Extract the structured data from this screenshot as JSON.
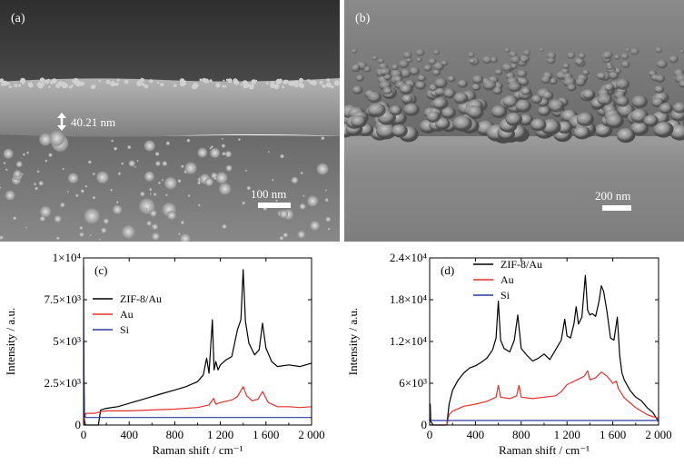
{
  "figure": {
    "panel_a": {
      "label": "(a)",
      "thickness_label": "40.21 nm",
      "scale_label": "100 nm"
    },
    "panel_b": {
      "label": "(b)",
      "scale_label": "200 nm"
    },
    "panel_c": {
      "label": "(c)"
    },
    "panel_d": {
      "label": "(d)"
    }
  },
  "chart_data": [
    {
      "type": "line",
      "panel": "(c)",
      "xlabel": "Raman shift / cm⁻¹",
      "ylabel": "Intensity / a.u.",
      "xlim": [
        0,
        2000
      ],
      "ylim": [
        0,
        10000
      ],
      "x_ticks": [
        0,
        400,
        800,
        1200,
        1600,
        2000
      ],
      "x_tick_labels": [
        "0",
        "400",
        "800",
        "1 200",
        "1 600",
        "2 000"
      ],
      "y_ticks": [
        0,
        2500,
        5000,
        7500,
        10000
      ],
      "y_tick_labels": [
        "0",
        "2.5×10³",
        "5×10³",
        "7.5×10³",
        "1×10⁴"
      ],
      "legend_position": "top-left",
      "series": [
        {
          "name": "ZIF-8/Au",
          "color": "#000000",
          "x": [
            0,
            8,
            15,
            30,
            60,
            100,
            130,
            150,
            200,
            300,
            400,
            500,
            600,
            700,
            800,
            900,
            1000,
            1050,
            1080,
            1100,
            1130,
            1145,
            1160,
            1180,
            1200,
            1250,
            1300,
            1350,
            1380,
            1400,
            1420,
            1450,
            1500,
            1540,
            1570,
            1600,
            1650,
            1700,
            1800,
            1900,
            2000
          ],
          "y": [
            5000,
            300,
            0,
            0,
            0,
            0,
            0,
            900,
            1000,
            1100,
            1300,
            1500,
            1700,
            1900,
            2100,
            2300,
            2600,
            3000,
            4000,
            3100,
            6300,
            3300,
            3800,
            3300,
            3600,
            3900,
            4100,
            5700,
            6300,
            9300,
            6200,
            4900,
            4200,
            4500,
            6100,
            4600,
            3800,
            3500,
            3600,
            3500,
            3700
          ]
        },
        {
          "name": "Au",
          "color": "#e8302c",
          "x": [
            0,
            10,
            20,
            50,
            100,
            150,
            200,
            400,
            600,
            800,
            1000,
            1100,
            1140,
            1160,
            1200,
            1300,
            1350,
            1400,
            1430,
            1480,
            1530,
            1570,
            1620,
            1700,
            1800,
            1900,
            2000
          ],
          "y": [
            0,
            500,
            700,
            700,
            700,
            800,
            850,
            850,
            900,
            950,
            1050,
            1200,
            1600,
            1250,
            1350,
            1500,
            1700,
            2300,
            1750,
            1450,
            1550,
            2000,
            1350,
            1100,
            1100,
            1050,
            1100
          ]
        },
        {
          "name": "Si",
          "color": "#2b3a9e",
          "x": [
            0,
            3,
            6,
            12,
            30,
            60,
            100,
            500,
            1000,
            1500,
            2000
          ],
          "y": [
            9500,
            3000,
            800,
            500,
            450,
            450,
            450,
            450,
            450,
            450,
            450
          ]
        }
      ]
    },
    {
      "type": "line",
      "panel": "(d)",
      "xlabel": "Raman shift / cm⁻¹",
      "ylabel": "Intensity / a.u.",
      "xlim": [
        0,
        2000
      ],
      "ylim": [
        0,
        24000
      ],
      "x_ticks": [
        0,
        400,
        800,
        1200,
        1600,
        2000
      ],
      "x_tick_labels": [
        "0",
        "400",
        "800",
        "1 200",
        "1 600",
        "2 000"
      ],
      "y_ticks": [
        0,
        6000,
        12000,
        18000,
        24000
      ],
      "y_tick_labels": [
        "0",
        "6×10³",
        "1.2×10⁴",
        "1.8×10⁴",
        "2.4×10⁴"
      ],
      "legend_position": "top-left",
      "series": [
        {
          "name": "ZIF-8/Au",
          "color": "#000000",
          "x": [
            0,
            5,
            10,
            30,
            100,
            150,
            170,
            200,
            250,
            300,
            350,
            400,
            450,
            500,
            550,
            580,
            600,
            620,
            650,
            700,
            740,
            770,
            800,
            850,
            900,
            950,
            1000,
            1050,
            1100,
            1150,
            1180,
            1200,
            1230,
            1260,
            1280,
            1300,
            1330,
            1360,
            1380,
            1400,
            1420,
            1450,
            1480,
            1500,
            1520,
            1550,
            1580,
            1610,
            1640,
            1660,
            1680,
            1700,
            1750,
            1800,
            1850,
            1900,
            1950,
            2000
          ],
          "y": [
            600,
            3000,
            500,
            0,
            0,
            0,
            3000,
            5000,
            6500,
            7500,
            8200,
            8500,
            9000,
            9600,
            10800,
            12500,
            17800,
            12200,
            11000,
            10500,
            12200,
            15800,
            11000,
            10000,
            9200,
            9600,
            10200,
            9400,
            10800,
            12200,
            15200,
            12800,
            12500,
            14500,
            17000,
            14500,
            15500,
            21500,
            16500,
            15800,
            16000,
            15600,
            17800,
            20000,
            19200,
            16200,
            12500,
            12200,
            15500,
            10000,
            7500,
            6500,
            5000,
            4000,
            3500,
            2500,
            1800,
            500
          ]
        },
        {
          "name": "Au",
          "color": "#e8302c",
          "x": [
            0,
            100,
            150,
            170,
            200,
            300,
            400,
            500,
            580,
            600,
            620,
            700,
            760,
            780,
            800,
            900,
            1000,
            1100,
            1150,
            1200,
            1250,
            1300,
            1350,
            1380,
            1400,
            1450,
            1480,
            1500,
            1550,
            1600,
            1630,
            1650,
            1700,
            1750,
            1800,
            1850,
            1900,
            1950,
            2000
          ],
          "y": [
            0,
            0,
            0,
            1500,
            2000,
            2700,
            3000,
            3400,
            4000,
            5700,
            4000,
            3800,
            4200,
            5700,
            4000,
            3800,
            4000,
            4200,
            4800,
            5800,
            6200,
            6600,
            7000,
            7800,
            6500,
            6800,
            7300,
            7600,
            7000,
            6000,
            6300,
            5200,
            3900,
            3200,
            2500,
            2000,
            1500,
            1200,
            1000
          ]
        },
        {
          "name": "Si",
          "color": "#2b3a9e",
          "x": [
            0,
            3,
            6,
            12,
            30,
            100,
            500,
            1000,
            1500,
            2000
          ],
          "y": [
            3000,
            1800,
            900,
            700,
            650,
            650,
            650,
            650,
            650,
            650
          ]
        }
      ]
    }
  ]
}
